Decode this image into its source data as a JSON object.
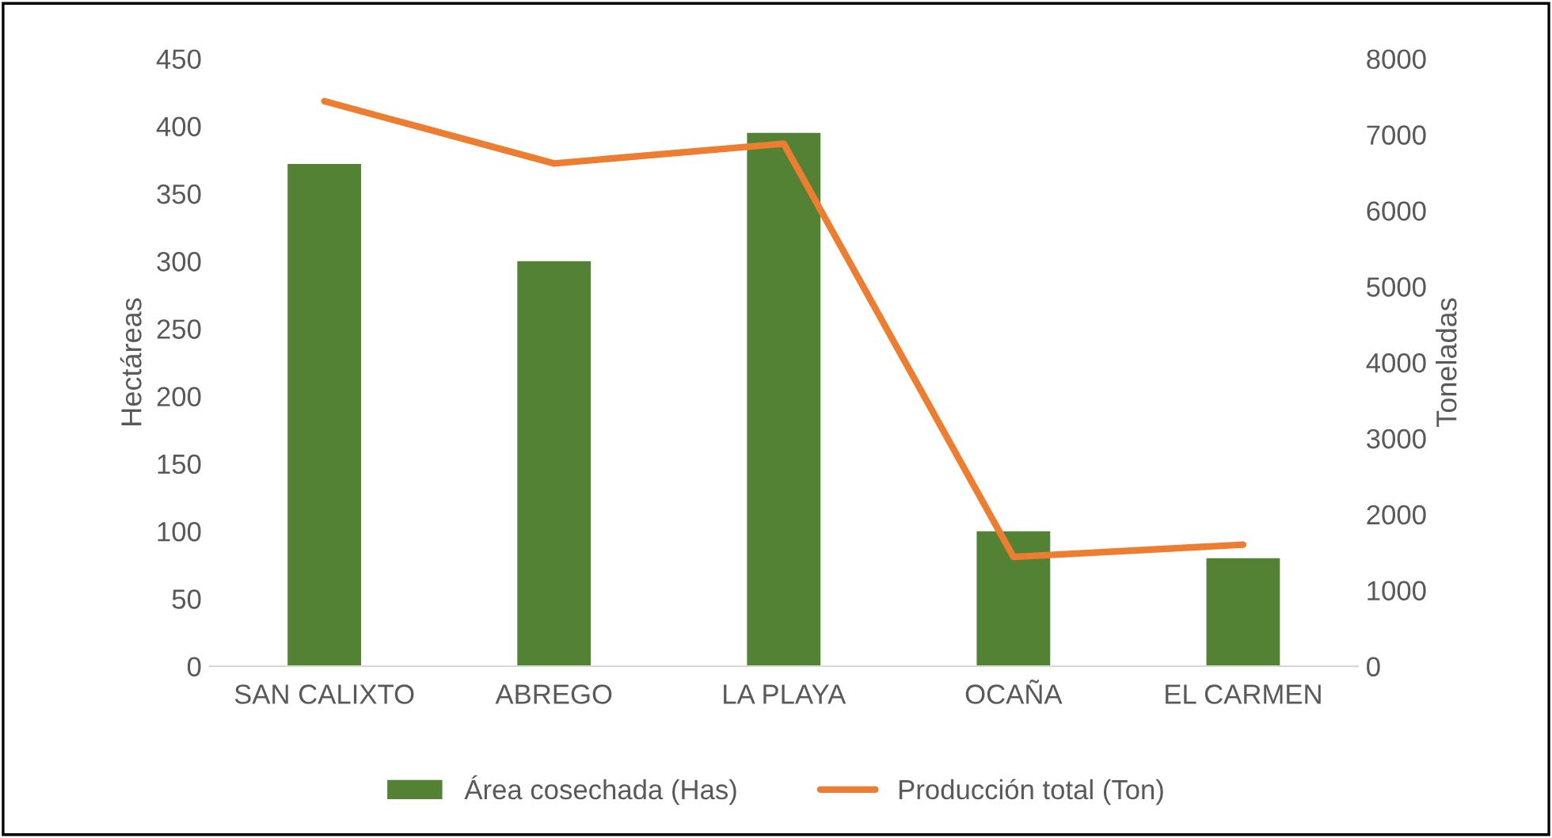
{
  "chart_data": {
    "type": "bar",
    "categories": [
      "SAN CALIXTO",
      "ABREGO",
      "LA PLAYA",
      "OCAÑA",
      "EL CARMEN"
    ],
    "ylabel": "Hectáreas",
    "y2label": "Toneladas",
    "series": [
      {
        "name": "Área cosechada (Has)",
        "color": "#548235",
        "values": [
          372,
          300,
          395,
          100,
          80
        ]
      },
      {
        "name": "Producción total (Ton)",
        "color": "#ed7d31",
        "type": "line",
        "axis": "y2",
        "values": [
          7440,
          6620,
          6880,
          1440,
          1600
        ]
      }
    ],
    "ylim": [
      0,
      450
    ],
    "yticks": [
      0,
      50,
      100,
      150,
      200,
      250,
      300,
      350,
      400,
      450
    ],
    "y2lim": [
      0,
      8000
    ],
    "y2ticks": [
      0,
      1000,
      2000,
      3000,
      4000,
      5000,
      6000,
      7000,
      8000
    ],
    "legend": "bottom",
    "grid": false
  }
}
